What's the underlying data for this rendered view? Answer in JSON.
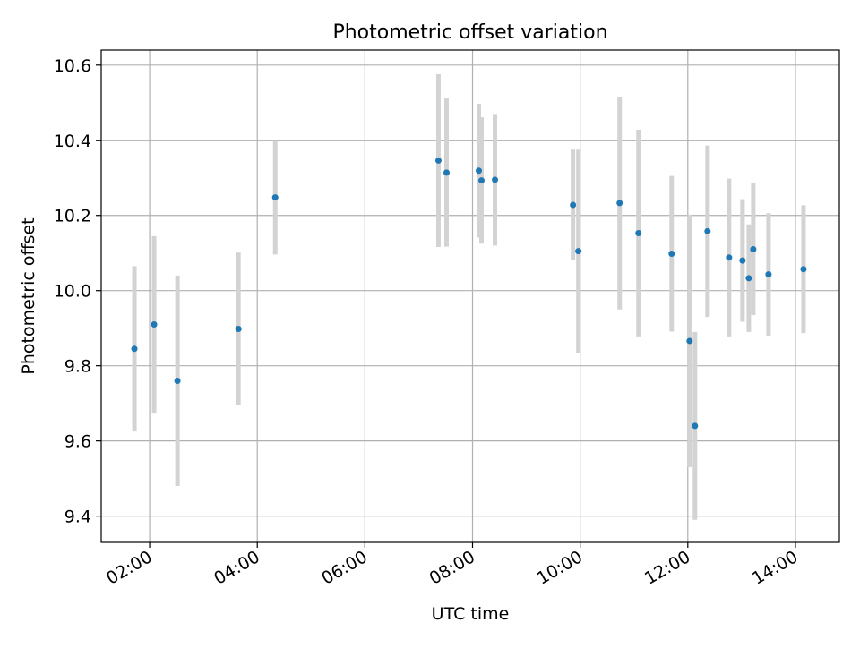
{
  "chart_data": {
    "type": "scatter",
    "title": "Photometric offset variation",
    "xlabel": "UTC time",
    "ylabel": "Photometric offset",
    "x_ticks": [
      "02:00",
      "04:00",
      "06:00",
      "08:00",
      "10:00",
      "12:00",
      "14:00"
    ],
    "y_ticks": [
      "9.4",
      "9.6",
      "9.8",
      "10.0",
      "10.2",
      "10.4",
      "10.6"
    ],
    "xlim": [
      "01:06",
      "14:49"
    ],
    "ylim": [
      9.33,
      10.64
    ],
    "grid": true,
    "legend": "none",
    "colors": {
      "marker": "#1f77b4",
      "errorbar": "#d3d3d3",
      "grid": "#b0b0b0"
    },
    "points": [
      {
        "x": "01:43",
        "y": 9.845,
        "err": 0.22
      },
      {
        "x": "02:05",
        "y": 9.91,
        "err": 0.235
      },
      {
        "x": "02:31",
        "y": 9.76,
        "err": 0.28
      },
      {
        "x": "03:39",
        "y": 9.898,
        "err": 0.203
      },
      {
        "x": "04:20",
        "y": 10.248,
        "err": 0.152
      },
      {
        "x": "07:22",
        "y": 10.346,
        "err": 0.23
      },
      {
        "x": "07:31",
        "y": 10.314,
        "err": 0.197
      },
      {
        "x": "08:07",
        "y": 10.319,
        "err": 0.178
      },
      {
        "x": "08:10",
        "y": 10.293,
        "err": 0.168
      },
      {
        "x": "08:25",
        "y": 10.295,
        "err": 0.175
      },
      {
        "x": "09:52",
        "y": 10.228,
        "err": 0.147
      },
      {
        "x": "09:58",
        "y": 10.105,
        "err": 0.27
      },
      {
        "x": "10:44",
        "y": 10.233,
        "err": 0.283
      },
      {
        "x": "11:05",
        "y": 10.153,
        "err": 0.275
      },
      {
        "x": "11:42",
        "y": 10.098,
        "err": 0.207
      },
      {
        "x": "12:02",
        "y": 9.866,
        "err": 0.336
      },
      {
        "x": "12:08",
        "y": 9.64,
        "err": 0.25
      },
      {
        "x": "12:22",
        "y": 10.158,
        "err": 0.228
      },
      {
        "x": "12:46",
        "y": 10.088,
        "err": 0.21
      },
      {
        "x": "13:01",
        "y": 10.08,
        "err": 0.163
      },
      {
        "x": "13:08",
        "y": 10.033,
        "err": 0.143
      },
      {
        "x": "13:13",
        "y": 10.11,
        "err": 0.175
      },
      {
        "x": "13:30",
        "y": 10.043,
        "err": 0.163
      },
      {
        "x": "14:09",
        "y": 10.057,
        "err": 0.17
      }
    ]
  }
}
